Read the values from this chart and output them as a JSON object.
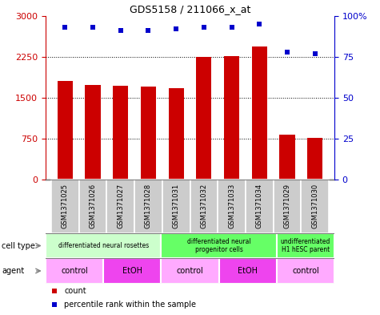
{
  "title": "GDS5158 / 211066_x_at",
  "samples": [
    "GSM1371025",
    "GSM1371026",
    "GSM1371027",
    "GSM1371028",
    "GSM1371031",
    "GSM1371032",
    "GSM1371033",
    "GSM1371034",
    "GSM1371029",
    "GSM1371030"
  ],
  "counts": [
    1800,
    1730,
    1720,
    1700,
    1670,
    2250,
    2260,
    2440,
    820,
    760
  ],
  "percentiles": [
    93,
    93,
    91,
    91,
    92,
    93,
    93,
    95,
    78,
    77
  ],
  "ylim_left": [
    0,
    3000
  ],
  "ylim_right": [
    0,
    100
  ],
  "yticks_left": [
    0,
    750,
    1500,
    2250,
    3000
  ],
  "yticks_right": [
    0,
    25,
    50,
    75,
    100
  ],
  "ytick_labels_left": [
    "0",
    "750",
    "1500",
    "2250",
    "3000"
  ],
  "ytick_labels_right": [
    "0",
    "25",
    "50",
    "75",
    "100%"
  ],
  "bar_color": "#cc0000",
  "dot_color": "#0000cc",
  "cell_type_groups": [
    {
      "label": "differentiated neural rosettes",
      "start": 0,
      "end": 4,
      "color": "#ccffcc"
    },
    {
      "label": "differentiated neural\nprogenitor cells",
      "start": 4,
      "end": 8,
      "color": "#66ff66"
    },
    {
      "label": "undifferentiated\nH1 hESC parent",
      "start": 8,
      "end": 10,
      "color": "#66ff66"
    }
  ],
  "agent_groups": [
    {
      "label": "control",
      "start": 0,
      "end": 2,
      "color": "#ffaaff"
    },
    {
      "label": "EtOH",
      "start": 2,
      "end": 4,
      "color": "#ee44ee"
    },
    {
      "label": "control",
      "start": 4,
      "end": 6,
      "color": "#ffaaff"
    },
    {
      "label": "EtOH",
      "start": 6,
      "end": 8,
      "color": "#ee44ee"
    },
    {
      "label": "control",
      "start": 8,
      "end": 10,
      "color": "#ffaaff"
    }
  ],
  "sample_bg_color": "#cccccc",
  "bg_color": "#ffffff",
  "bar_width": 0.55
}
